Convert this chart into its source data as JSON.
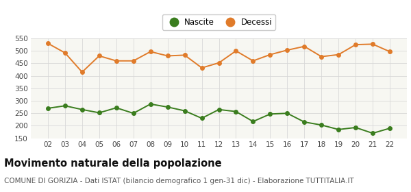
{
  "years": [
    "02",
    "03",
    "04",
    "05",
    "06",
    "07",
    "08",
    "09",
    "10",
    "11",
    "12",
    "13",
    "14",
    "15",
    "16",
    "17",
    "18",
    "19",
    "20",
    "21",
    "22"
  ],
  "nascite": [
    270,
    280,
    265,
    252,
    272,
    250,
    287,
    275,
    260,
    230,
    265,
    257,
    217,
    247,
    250,
    215,
    203,
    185,
    193,
    170,
    190
  ],
  "decessi": [
    530,
    492,
    415,
    480,
    460,
    460,
    497,
    480,
    483,
    432,
    452,
    500,
    460,
    485,
    503,
    518,
    477,
    485,
    525,
    527,
    497
  ],
  "nascite_color": "#3a7d1e",
  "decessi_color": "#e07b2a",
  "bg_color": "#ffffff",
  "plot_bg_color": "#f7f7f2",
  "grid_color": "#d8d8d8",
  "ylim": [
    150,
    550
  ],
  "yticks": [
    150,
    200,
    250,
    300,
    350,
    400,
    450,
    500,
    550
  ],
  "legend_nascite": "Nascite",
  "legend_decessi": "Decessi",
  "title": "Movimento naturale della popolazione",
  "subtitle": "COMUNE DI GORIZIA - Dati ISTAT (bilancio demografico 1 gen-31 dic) - Elaborazione TUTTITALIA.IT",
  "title_fontsize": 10.5,
  "subtitle_fontsize": 7.5,
  "marker_size": 4,
  "line_width": 1.4
}
